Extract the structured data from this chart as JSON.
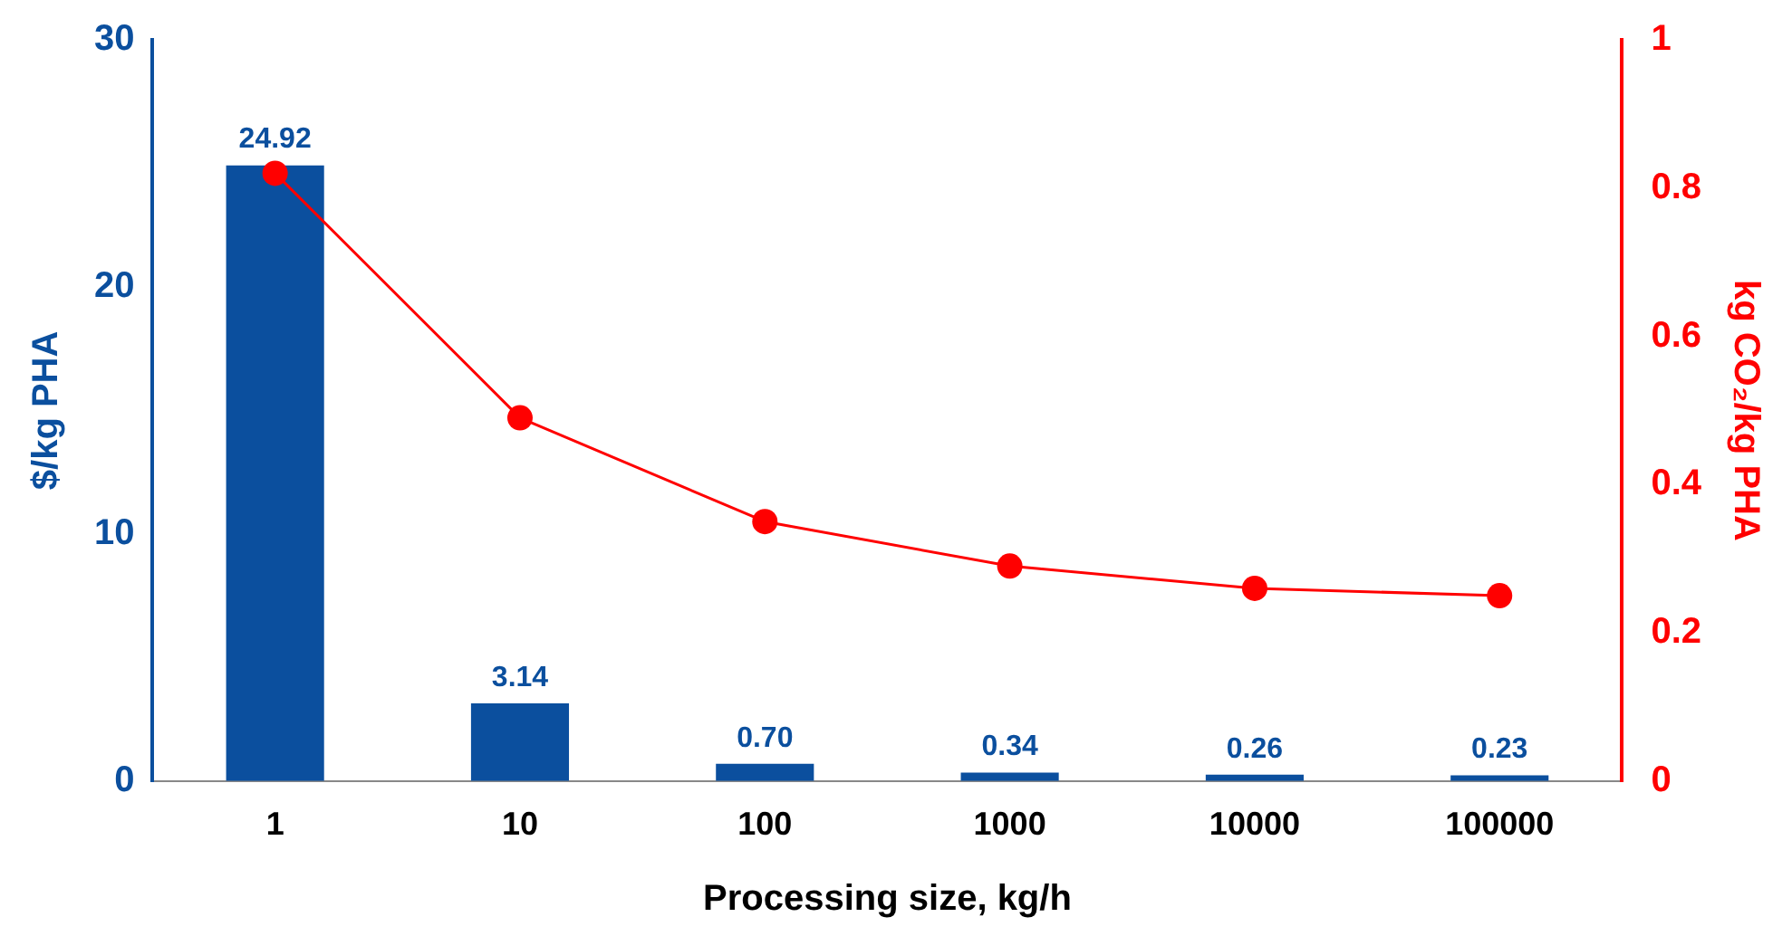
{
  "chart_data": {
    "type": "bar",
    "xlabel": "Processing size, kg/h",
    "ylabel": "$/kg PHA",
    "y2label": "kg CO₂/kg PHA",
    "categories": [
      "1",
      "10",
      "100",
      "1000",
      "10000",
      "100000"
    ],
    "series": [
      {
        "color": "#0b4f9e",
        "values": [
          24.92,
          3.14,
          0.7,
          0.34,
          0.26,
          0.23
        ],
        "value_labels": [
          "24.92",
          "3.14",
          "0.70",
          "0.34",
          "0.26",
          "0.23"
        ]
      },
      {
        "type": "line",
        "axis": "y2",
        "color": "#ff0000",
        "marker": "circle",
        "values": [
          0.82,
          0.49,
          0.35,
          0.29,
          0.26,
          0.25
        ]
      }
    ],
    "ylim": [
      0,
      30
    ],
    "yticks": [
      0,
      10,
      20,
      30
    ],
    "y2lim": [
      0,
      1
    ],
    "y2ticks": [
      0,
      0.2,
      0.4,
      0.6,
      0.8,
      1
    ],
    "grid": false,
    "legend": false
  }
}
